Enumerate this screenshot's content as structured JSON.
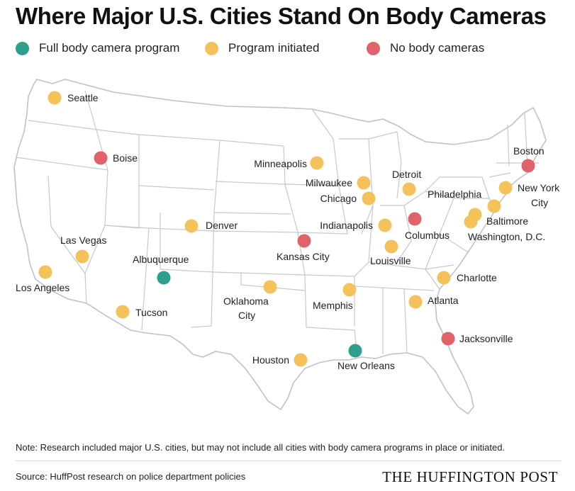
{
  "title": "Where Major U.S. Cities Stand On Body Cameras",
  "legend": [
    {
      "label": "Full body camera program",
      "color": "#2e9e8e"
    },
    {
      "label": "Program initiated",
      "color": "#f5c15b"
    },
    {
      "label": "No body cameras",
      "color": "#e2626b"
    }
  ],
  "cities": [
    {
      "name": "Seattle",
      "status": "initiated"
    },
    {
      "name": "Boise",
      "status": "none"
    },
    {
      "name": "Minneapolis",
      "status": "initiated"
    },
    {
      "name": "Boston",
      "status": "none"
    },
    {
      "name": "Milwaukee",
      "status": "initiated"
    },
    {
      "name": "Detroit",
      "status": "initiated"
    },
    {
      "name": "Chicago",
      "status": "initiated"
    },
    {
      "name": "Philadelphia",
      "status": "initiated"
    },
    {
      "name": "New York City",
      "status": "initiated"
    },
    {
      "name": "Denver",
      "status": "initiated"
    },
    {
      "name": "Indianapolis",
      "status": "initiated"
    },
    {
      "name": "Columbus",
      "status": "none"
    },
    {
      "name": "Baltimore",
      "status": "initiated"
    },
    {
      "name": "Washington, D.C.",
      "status": "initiated"
    },
    {
      "name": "Las Vegas",
      "status": "initiated"
    },
    {
      "name": "Kansas City",
      "status": "none"
    },
    {
      "name": "Louisville",
      "status": "initiated"
    },
    {
      "name": "Albuquerque",
      "status": "full"
    },
    {
      "name": "Los Angeles",
      "status": "initiated"
    },
    {
      "name": "Charlotte",
      "status": "initiated"
    },
    {
      "name": "Oklahoma City",
      "status": "initiated"
    },
    {
      "name": "Memphis",
      "status": "initiated"
    },
    {
      "name": "Atlanta",
      "status": "initiated"
    },
    {
      "name": "Tucson",
      "status": "initiated"
    },
    {
      "name": "Jacksonville",
      "status": "none"
    },
    {
      "name": "Houston",
      "status": "initiated"
    },
    {
      "name": "New Orleans",
      "status": "full"
    }
  ],
  "status_colors": {
    "full": "#2e9e8e",
    "initiated": "#f5c15b",
    "none": "#e2626b"
  },
  "note": "Note: Research included major U.S. cities, but may not include all cities with body camera programs in place or initiated.",
  "source": "Source: HuffPost research on police department policies",
  "brand": "THE HUFFINGTON POST"
}
